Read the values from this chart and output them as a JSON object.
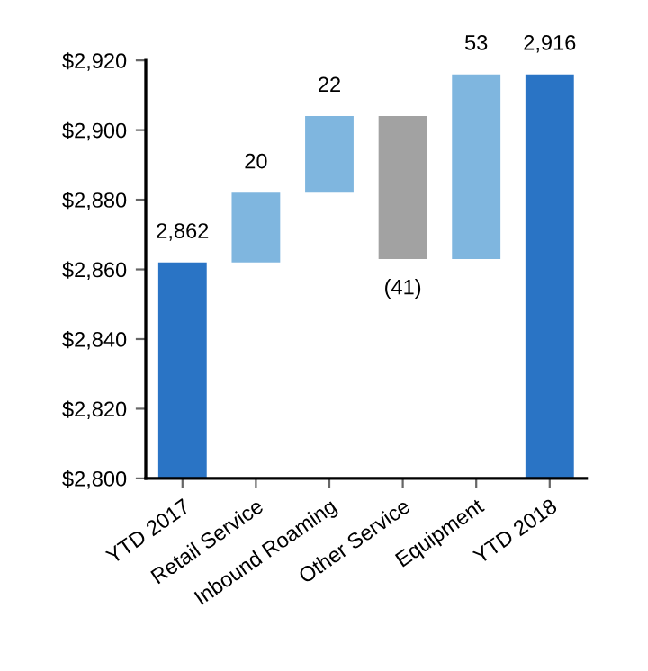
{
  "chart_data": {
    "type": "bar",
    "categories": [
      "YTD 2017",
      "Retail Service",
      "Inbound Roaming",
      "Other Service",
      "Equipment",
      "YTD 2018"
    ],
    "base": [
      2800,
      2862,
      2882,
      2904,
      2863,
      2800
    ],
    "values": [
      62,
      20,
      22,
      -41,
      53,
      116
    ],
    "colors": [
      "#2a74c5",
      "#7fb6df",
      "#7fb6df",
      "#a2a2a2",
      "#7fb6df",
      "#2a74c5"
    ],
    "value_labels": [
      "2,862",
      "20",
      "22",
      "(41)",
      "53",
      "2,916"
    ],
    "ylim": [
      2800,
      2920
    ],
    "yticks": [
      {
        "value": 2800,
        "label": "$2,800"
      },
      {
        "value": 2820,
        "label": "$2,820"
      },
      {
        "value": 2840,
        "label": "$2,840"
      },
      {
        "value": 2860,
        "label": "$2,860"
      },
      {
        "value": 2880,
        "label": "$2,880"
      },
      {
        "value": 2900,
        "label": "$2,900"
      },
      {
        "value": 2920,
        "label": "$2,920"
      }
    ],
    "grid": false,
    "legend": false
  }
}
